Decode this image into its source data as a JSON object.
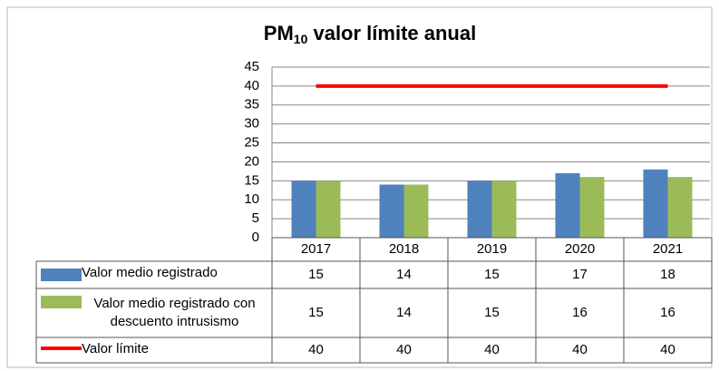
{
  "chart_data": {
    "type": "bar",
    "title_parts": [
      "PM",
      "10",
      " valor límite anual"
    ],
    "categories": [
      "2017",
      "2018",
      "2019",
      "2020",
      "2021"
    ],
    "series": [
      {
        "name": "Valor medio registrado",
        "color": "#4f81bd",
        "type": "bar",
        "values": [
          15,
          14,
          15,
          17,
          18
        ]
      },
      {
        "name": "Valor medio registrado con descuento intrusismo",
        "color": "#9bbb59",
        "type": "bar",
        "values": [
          15,
          14,
          15,
          16,
          16
        ]
      },
      {
        "name": "Valor límite",
        "color": "#ff0000",
        "type": "line",
        "values": [
          40,
          40,
          40,
          40,
          40
        ]
      }
    ],
    "ylim": [
      0,
      45
    ],
    "yticks": [
      0,
      5,
      10,
      15,
      20,
      25,
      30,
      35,
      40,
      45
    ],
    "grid": true
  }
}
